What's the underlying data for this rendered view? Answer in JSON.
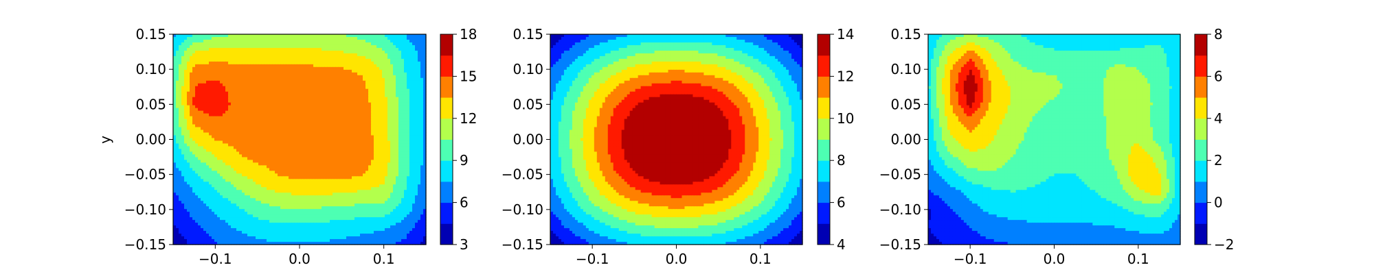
{
  "figure": {
    "background": "#ffffff"
  },
  "colormap": "jet",
  "chart_data": [
    {
      "type": "heatmap",
      "x": [
        -0.15,
        -0.125,
        -0.1,
        -0.075,
        -0.05,
        -0.025,
        0.0,
        0.025,
        0.05,
        0.075,
        0.1,
        0.125,
        0.15
      ],
      "y": [
        0.15,
        0.125,
        0.1,
        0.075,
        0.05,
        0.025,
        0.0,
        -0.025,
        -0.05,
        -0.075,
        -0.1,
        -0.125,
        -0.15
      ],
      "z": [
        [
          7.2,
          9.0,
          10.0,
          10.5,
          10.8,
          11.0,
          11.0,
          10.8,
          10.5,
          10.0,
          9.0,
          7.5,
          6.0
        ],
        [
          8.5,
          12.0,
          12.6,
          12.4,
          12.3,
          12.3,
          12.3,
          12.2,
          12.0,
          11.6,
          10.6,
          8.5,
          6.8
        ],
        [
          9.3,
          14.0,
          14.2,
          14.0,
          13.9,
          13.9,
          13.9,
          13.8,
          13.6,
          13.3,
          11.8,
          9.0,
          7.0
        ],
        [
          9.6,
          15.0,
          15.6,
          14.2,
          14.1,
          14.1,
          14.1,
          14.1,
          14.0,
          13.8,
          12.2,
          9.3,
          7.2
        ],
        [
          9.5,
          15.2,
          16.5,
          14.3,
          14.2,
          14.2,
          14.2,
          14.2,
          14.2,
          14.1,
          12.4,
          9.5,
          7.3
        ],
        [
          9.2,
          13.8,
          14.5,
          14.2,
          14.2,
          14.2,
          14.2,
          14.2,
          14.2,
          14.2,
          12.5,
          9.6,
          7.3
        ],
        [
          8.6,
          12.4,
          13.6,
          14.0,
          14.2,
          14.3,
          14.3,
          14.3,
          14.2,
          14.2,
          12.7,
          9.7,
          7.2
        ],
        [
          7.6,
          10.3,
          12.0,
          13.2,
          14.0,
          14.2,
          14.3,
          14.2,
          14.2,
          14.2,
          12.9,
          9.7,
          7.1
        ],
        [
          6.7,
          8.7,
          10.2,
          11.8,
          12.7,
          13.6,
          14.0,
          14.1,
          14.1,
          13.6,
          12.5,
          9.4,
          6.9
        ],
        [
          5.9,
          7.5,
          8.8,
          10.1,
          11.4,
          12.1,
          12.3,
          12.3,
          12.2,
          11.8,
          11.5,
          9.0,
          6.5
        ],
        [
          5.0,
          6.6,
          7.8,
          8.7,
          9.7,
          10.3,
          10.4,
          10.3,
          10.1,
          9.9,
          9.8,
          8.3,
          5.8
        ],
        [
          4.3,
          5.7,
          6.8,
          7.7,
          8.3,
          8.6,
          8.6,
          8.5,
          8.3,
          8.0,
          7.8,
          6.8,
          4.9
        ],
        [
          3.5,
          4.8,
          5.8,
          6.6,
          7.1,
          7.4,
          7.4,
          7.3,
          7.1,
          6.8,
          6.3,
          5.6,
          4.0
        ]
      ],
      "levels": [
        3,
        4.5,
        6,
        7.5,
        9,
        10.5,
        12,
        13.5,
        15,
        16.5,
        18
      ],
      "xlim": [
        -0.15,
        0.15
      ],
      "ylim": [
        -0.15,
        0.15
      ],
      "xticks": [
        "−0.1",
        "0.0",
        "0.1"
      ],
      "xtick_values": [
        -0.1,
        0.0,
        0.1
      ],
      "yticks": [
        "0.15",
        "0.10",
        "0.05",
        "0.00",
        "−0.05",
        "−0.10",
        "−0.15"
      ],
      "ytick_values": [
        0.15,
        0.1,
        0.05,
        0.0,
        -0.05,
        -0.1,
        -0.15
      ],
      "ylabel": "y",
      "colorbar": {
        "ticks": [
          "18",
          "15",
          "12",
          "9",
          "6",
          "3"
        ],
        "tick_values": [
          18,
          15,
          12,
          9,
          6,
          3
        ],
        "range": [
          3,
          18
        ]
      }
    },
    {
      "type": "heatmap",
      "x": [
        -0.15,
        -0.125,
        -0.1,
        -0.075,
        -0.05,
        -0.025,
        0.0,
        0.025,
        0.05,
        0.075,
        0.1,
        0.125,
        0.15
      ],
      "y": [
        0.15,
        0.125,
        0.1,
        0.075,
        0.05,
        0.025,
        0.0,
        -0.025,
        -0.05,
        -0.075,
        -0.1,
        -0.125,
        -0.15
      ],
      "z": [
        [
          4.2,
          5.2,
          6.0,
          6.6,
          7.0,
          7.2,
          7.3,
          7.2,
          7.0,
          6.6,
          6.0,
          5.2,
          4.2
        ],
        [
          5.2,
          6.3,
          7.3,
          8.1,
          8.7,
          9.0,
          9.1,
          9.0,
          8.7,
          8.1,
          7.3,
          6.3,
          5.2
        ],
        [
          6.0,
          7.3,
          8.6,
          9.6,
          10.3,
          10.7,
          10.9,
          10.7,
          10.3,
          9.6,
          8.6,
          7.3,
          6.0
        ],
        [
          6.6,
          8.1,
          9.6,
          10.9,
          11.8,
          12.3,
          12.5,
          12.3,
          11.8,
          10.9,
          9.6,
          8.1,
          6.6
        ],
        [
          7.0,
          8.7,
          10.3,
          11.8,
          12.9,
          13.6,
          13.9,
          13.6,
          12.9,
          11.8,
          10.3,
          8.7,
          7.0
        ],
        [
          7.2,
          9.0,
          10.7,
          12.3,
          13.6,
          14.4,
          14.8,
          14.4,
          13.6,
          12.3,
          10.7,
          9.0,
          7.2
        ],
        [
          7.3,
          9.1,
          10.9,
          12.5,
          13.9,
          14.8,
          15.2,
          14.8,
          13.9,
          12.5,
          10.9,
          9.1,
          7.3
        ],
        [
          7.2,
          9.0,
          10.7,
          12.3,
          13.6,
          14.4,
          14.8,
          14.4,
          13.6,
          12.3,
          10.7,
          9.0,
          7.2
        ],
        [
          7.0,
          8.7,
          10.3,
          11.8,
          12.9,
          13.6,
          13.9,
          13.6,
          12.9,
          11.8,
          10.3,
          8.7,
          7.0
        ],
        [
          6.6,
          8.1,
          9.6,
          10.9,
          11.8,
          12.3,
          12.5,
          12.3,
          11.8,
          10.9,
          9.6,
          8.1,
          6.6
        ],
        [
          6.0,
          7.3,
          8.6,
          9.6,
          10.3,
          10.7,
          10.9,
          10.7,
          10.3,
          9.6,
          8.6,
          7.3,
          6.0
        ],
        [
          5.2,
          6.3,
          7.3,
          8.1,
          8.7,
          9.0,
          9.1,
          9.0,
          8.7,
          8.1,
          7.3,
          6.3,
          5.2
        ],
        [
          4.2,
          5.2,
          6.0,
          6.6,
          7.0,
          7.2,
          7.3,
          7.2,
          7.0,
          6.6,
          6.0,
          5.2,
          4.2
        ]
      ],
      "levels": [
        4,
        5,
        6,
        7,
        8,
        9,
        10,
        11,
        12,
        13,
        14
      ],
      "xlim": [
        -0.15,
        0.15
      ],
      "ylim": [
        -0.15,
        0.15
      ],
      "xticks": [
        "−0.1",
        "0.0",
        "0.1"
      ],
      "xtick_values": [
        -0.1,
        0.0,
        0.1
      ],
      "yticks": [
        "0.15",
        "0.10",
        "0.05",
        "0.00",
        "−0.05",
        "−0.10",
        "−0.15"
      ],
      "ytick_values": [
        0.15,
        0.1,
        0.05,
        0.0,
        -0.05,
        -0.1,
        -0.15
      ],
      "ylabel": "",
      "colorbar": {
        "ticks": [
          "14",
          "12",
          "10",
          "8",
          "6",
          "4"
        ],
        "tick_values": [
          14,
          12,
          10,
          8,
          6,
          4
        ],
        "range": [
          4,
          14
        ]
      }
    },
    {
      "type": "heatmap",
      "x": [
        -0.15,
        -0.125,
        -0.1,
        -0.075,
        -0.05,
        -0.025,
        0.0,
        0.025,
        0.05,
        0.075,
        0.1,
        0.125,
        0.15
      ],
      "y": [
        0.15,
        0.125,
        0.1,
        0.075,
        0.05,
        0.025,
        0.0,
        -0.025,
        -0.05,
        -0.075,
        -0.1,
        -0.125,
        -0.15
      ],
      "z": [
        [
          1.0,
          2.5,
          3.0,
          2.6,
          2.2,
          1.7,
          1.4,
          1.2,
          1.2,
          1.3,
          1.5,
          1.6,
          1.2
        ],
        [
          1.4,
          3.8,
          5.2,
          3.8,
          2.8,
          2.3,
          2.1,
          2.0,
          2.0,
          2.1,
          2.2,
          2.2,
          1.4
        ],
        [
          1.6,
          4.8,
          7.0,
          4.5,
          3.3,
          2.9,
          2.8,
          2.5,
          2.5,
          3.4,
          3.0,
          2.4,
          1.5
        ],
        [
          1.8,
          5.0,
          8.0,
          5.0,
          3.9,
          3.6,
          3.4,
          2.3,
          2.6,
          3.9,
          3.6,
          2.6,
          1.5
        ],
        [
          1.6,
          4.8,
          7.3,
          4.8,
          3.9,
          3.3,
          2.8,
          2.2,
          2.6,
          3.8,
          3.7,
          2.6,
          1.4
        ],
        [
          1.4,
          4.3,
          5.5,
          4.4,
          3.6,
          2.9,
          2.4,
          2.2,
          2.5,
          3.6,
          3.7,
          2.5,
          1.3
        ],
        [
          1.2,
          3.8,
          4.6,
          4.1,
          3.3,
          2.7,
          2.3,
          2.2,
          2.5,
          3.6,
          3.9,
          2.7,
          1.2
        ],
        [
          1.0,
          2.7,
          3.8,
          3.7,
          3.0,
          2.5,
          2.2,
          2.2,
          2.5,
          3.3,
          4.6,
          3.6,
          1.2
        ],
        [
          0.5,
          1.5,
          2.6,
          2.9,
          2.5,
          2.2,
          2.0,
          2.0,
          2.3,
          3.0,
          4.8,
          4.1,
          1.3
        ],
        [
          -0.1,
          0.6,
          1.3,
          1.8,
          2.0,
          1.9,
          1.8,
          1.8,
          2.0,
          2.5,
          3.8,
          4.5,
          1.2
        ],
        [
          -1.1,
          -0.1,
          0.7,
          1.2,
          1.4,
          1.5,
          1.5,
          1.5,
          1.6,
          1.8,
          2.3,
          2.5,
          1.0
        ],
        [
          -1.0,
          -0.6,
          0.0,
          0.5,
          0.7,
          0.8,
          0.8,
          0.8,
          0.9,
          1.0,
          1.3,
          1.5,
          0.6
        ],
        [
          -1.2,
          -0.9,
          -0.4,
          -0.2,
          0.0,
          0.1,
          0.2,
          0.1,
          0.1,
          0.2,
          0.3,
          0.4,
          0.1
        ]
      ],
      "levels": [
        -2,
        -1,
        0,
        1,
        2,
        3,
        4,
        5,
        6,
        7,
        8
      ],
      "xlim": [
        -0.15,
        0.15
      ],
      "ylim": [
        -0.15,
        0.15
      ],
      "xticks": [
        "−0.1",
        "0.0",
        "0.1"
      ],
      "xtick_values": [
        -0.1,
        0.0,
        0.1
      ],
      "yticks": [
        "0.15",
        "0.10",
        "0.05",
        "0.00",
        "−0.05",
        "−0.10",
        "−0.15"
      ],
      "ytick_values": [
        0.15,
        0.1,
        0.05,
        0.0,
        -0.05,
        -0.1,
        -0.15
      ],
      "ylabel": "",
      "colorbar": {
        "ticks": [
          "8",
          "6",
          "4",
          "2",
          "0",
          "−2"
        ],
        "tick_values": [
          8,
          6,
          4,
          2,
          0,
          -2
        ],
        "range": [
          -2,
          8
        ]
      }
    }
  ]
}
